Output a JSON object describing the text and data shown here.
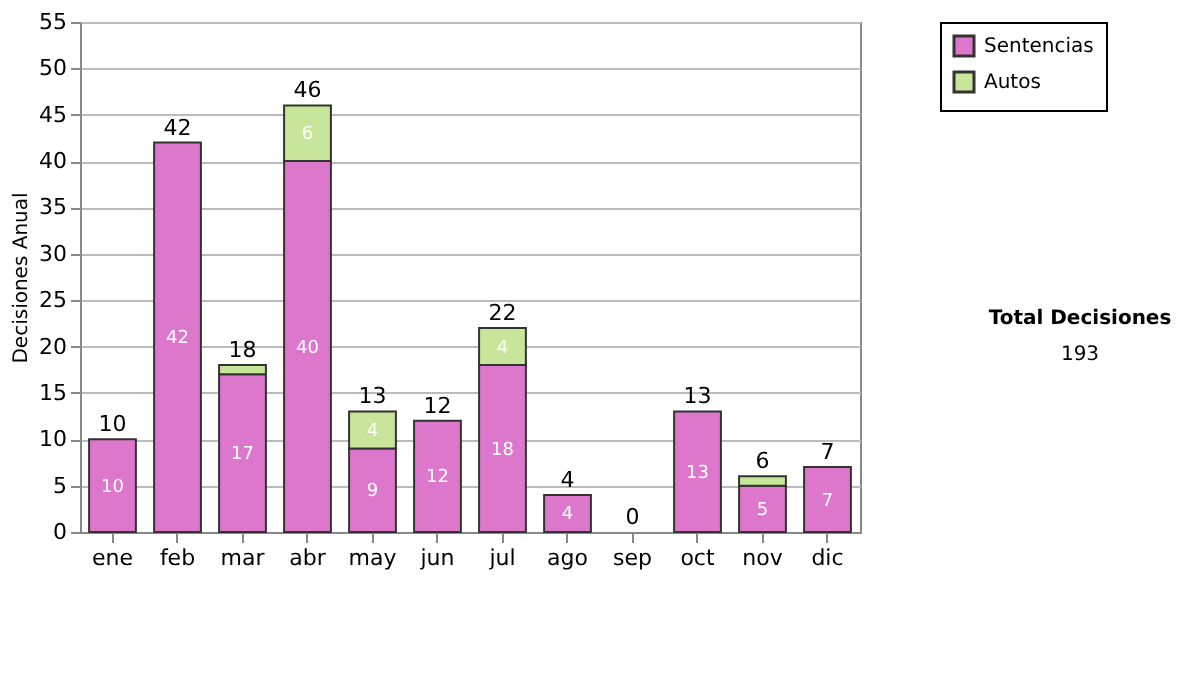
{
  "chart_data": {
    "type": "bar",
    "stacked": true,
    "ylabel": "Decisiones Anual",
    "categories": [
      "ene",
      "feb",
      "mar",
      "abr",
      "may",
      "jun",
      "jul",
      "ago",
      "sep",
      "oct",
      "nov",
      "dic"
    ],
    "series": [
      {
        "name": "Sentencias",
        "color": "#dd77cc",
        "values": [
          10,
          42,
          17,
          40,
          9,
          12,
          18,
          4,
          0,
          13,
          5,
          7
        ],
        "value_labels": [
          "10",
          "42",
          "17",
          "40",
          "9",
          "12",
          "18",
          "4",
          null,
          "13",
          "5",
          "7"
        ]
      },
      {
        "name": "Autos",
        "color": "#c8e69a",
        "values": [
          0,
          0,
          1,
          6,
          4,
          0,
          4,
          0,
          0,
          0,
          1,
          0
        ],
        "value_labels": [
          null,
          null,
          null,
          "6",
          "4",
          null,
          "4",
          null,
          null,
          null,
          null,
          null
        ]
      }
    ],
    "totals": [
      "10",
      "42",
      "18",
      "46",
      "13",
      "12",
      "22",
      "4",
      "0",
      "13",
      "6",
      "7"
    ],
    "ylim": [
      0,
      55
    ],
    "yticks": [
      0,
      5,
      10,
      15,
      20,
      25,
      30,
      35,
      40,
      45,
      50,
      55
    ],
    "grid": "y",
    "legend": "right",
    "annotations": [
      "Total Decisiones",
      "193"
    ]
  }
}
